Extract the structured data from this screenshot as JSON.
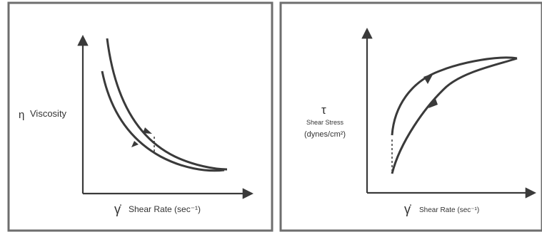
{
  "colors": {
    "background": "#ffffff",
    "frame": "#6e6e6e",
    "curve": "#3a3a3a",
    "text": "#333333"
  },
  "panels": [
    {
      "id": "viscosity",
      "y_symbol": "η",
      "y_label": "Viscosity",
      "x_symbol": "γ̇",
      "x_label": "Shear Rate (sec⁻¹)"
    },
    {
      "id": "shear-stress",
      "y_symbol": "τ",
      "y_label_line1": "Shear Stress",
      "y_label_line2": "(dynes/cm²)",
      "x_symbol": "γ̇",
      "x_label": "Shear Rate (sec⁻¹)"
    }
  ]
}
